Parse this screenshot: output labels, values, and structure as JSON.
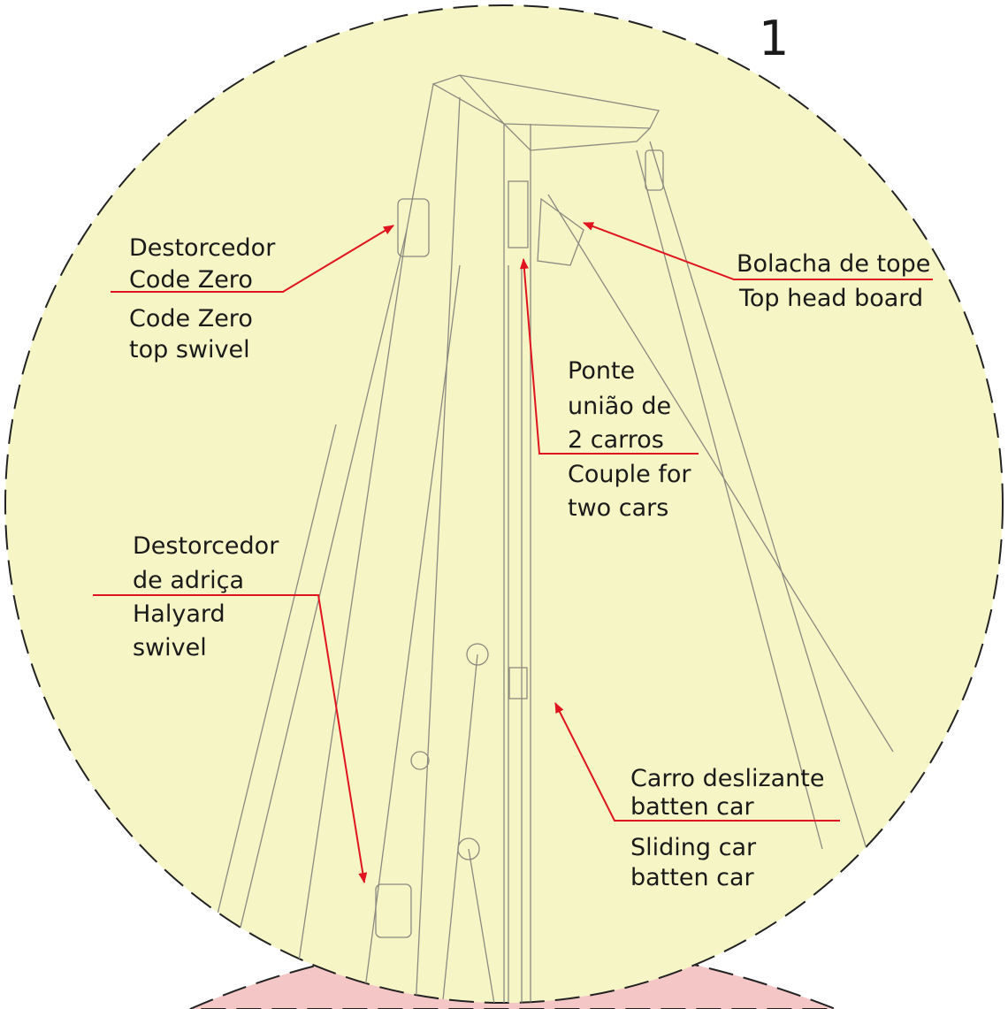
{
  "figure_number": "1",
  "labels": [
    {
      "lines": [
        "Destorcedor",
        "Code Zero",
        "Code Zero",
        "top swivel"
      ]
    },
    {
      "lines": [
        "Bolacha de tope",
        "Top head board"
      ]
    },
    {
      "lines": [
        "Ponte",
        "união de",
        "2 carros",
        "Couple for",
        "two cars"
      ]
    },
    {
      "lines": [
        "Destorcedor",
        "de adriça",
        "Halyard",
        "swivel"
      ]
    },
    {
      "lines": [
        "Carro deslizante",
        "batten car",
        "Sliding car",
        "batten car"
      ]
    }
  ]
}
